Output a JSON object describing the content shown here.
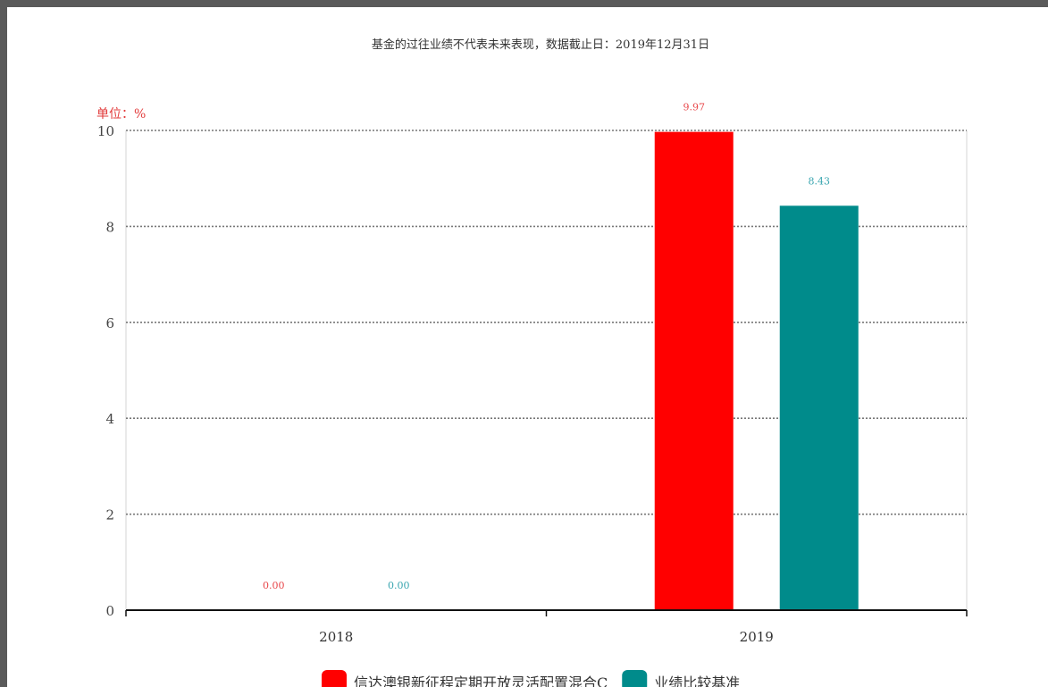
{
  "note": "基金的过往业绩不代表未来表现，数据截止日：2019年12月31日",
  "unit_label": "单位：%",
  "chart_data": {
    "type": "bar",
    "categories": [
      "2018",
      "2019"
    ],
    "series": [
      {
        "name": "信达澳银新征程定期开放灵活配置混合C",
        "values": [
          0.0,
          9.97
        ],
        "labels": [
          "0.00",
          "9.97"
        ],
        "color": "#ff0000",
        "label_color": "#e8474a"
      },
      {
        "name": "业绩比较基准",
        "values": [
          0.0,
          8.43
        ],
        "labels": [
          "0.00",
          "8.43"
        ],
        "color": "#008b8b",
        "label_color": "#3aa6b0"
      }
    ],
    "ylim": [
      0,
      10
    ],
    "yticks": [
      "0",
      "2",
      "4",
      "6",
      "8",
      "10"
    ],
    "grid": true,
    "legend_position": "bottom"
  }
}
